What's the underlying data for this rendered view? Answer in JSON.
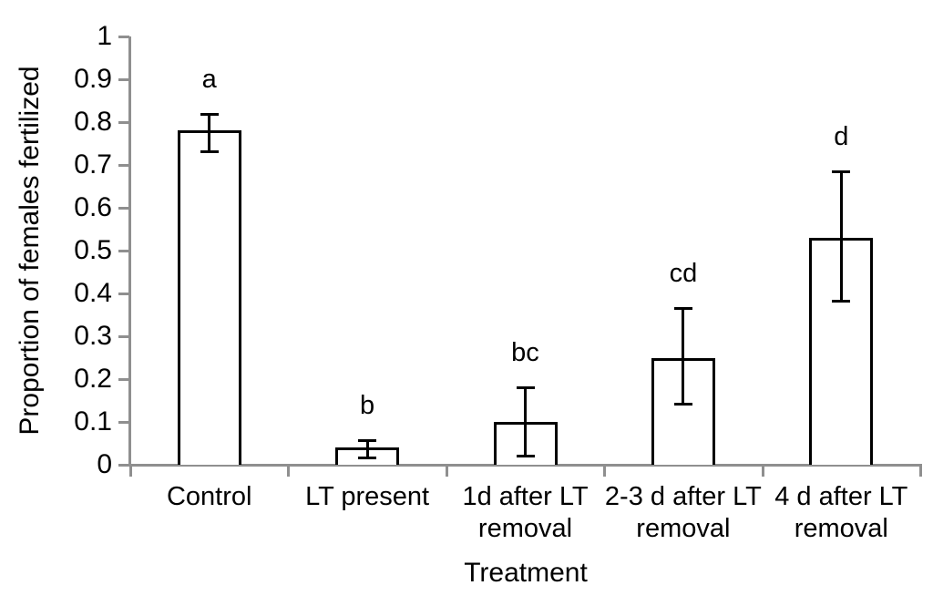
{
  "chart_data": {
    "type": "bar",
    "title": "",
    "xlabel": "Treatment",
    "ylabel": "Proportion of females fertilized",
    "ylim": [
      0,
      1
    ],
    "ytick_step": 0.1,
    "yticks": [
      "0",
      "0.1",
      "0.2",
      "0.3",
      "0.4",
      "0.5",
      "0.6",
      "0.7",
      "0.8",
      "0.9",
      "1"
    ],
    "categories": [
      "Control",
      "LT present",
      "1d after LT removal",
      "2-3 d after LT removal",
      "4 d after LT removal"
    ],
    "values": [
      0.78,
      0.04,
      0.1,
      0.25,
      0.53
    ],
    "error_low": [
      0.73,
      0.015,
      0.02,
      0.14,
      0.38
    ],
    "error_high": [
      0.82,
      0.057,
      0.18,
      0.365,
      0.685
    ],
    "sig_letters": [
      "a",
      "b",
      "bc",
      "cd",
      "d"
    ],
    "grid": false,
    "legend_position": "none",
    "colors": {
      "bar_fill": "#ffffff",
      "bar_border": "#000000",
      "error_bar": "#000000",
      "axis": "#8f8f8f",
      "text": "#000000",
      "background": "#ffffff"
    }
  }
}
